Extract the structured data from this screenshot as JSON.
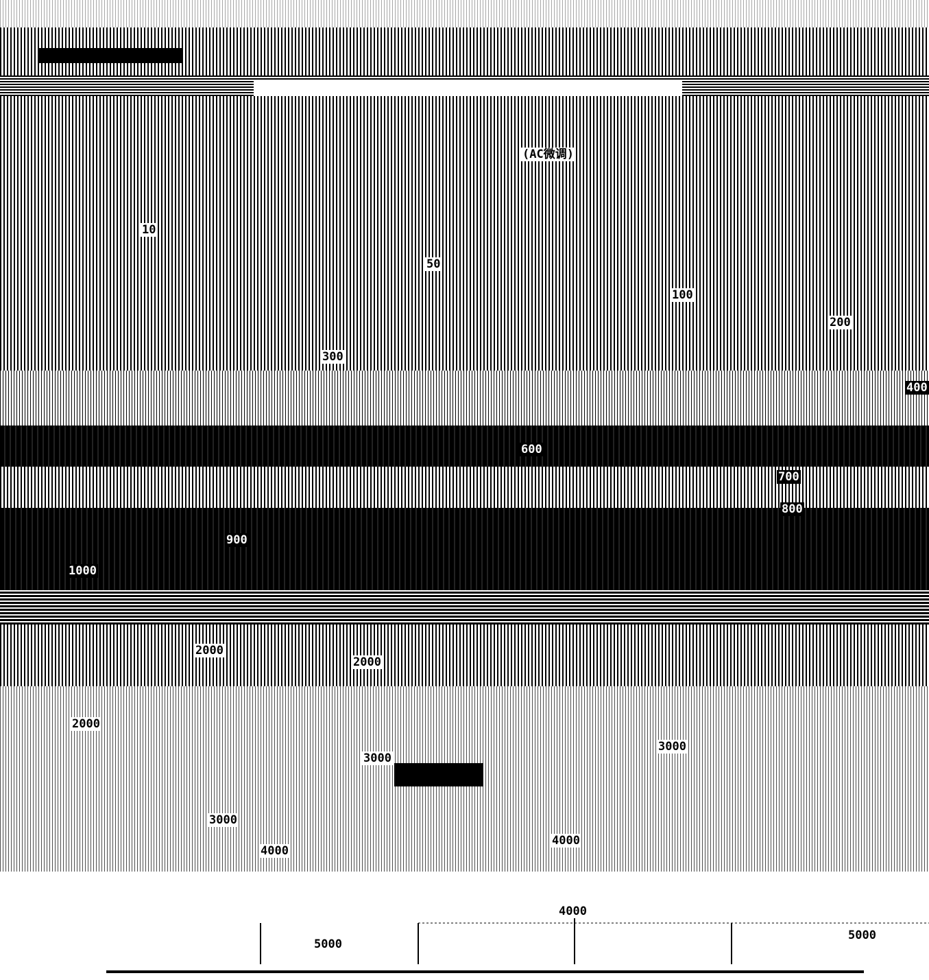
{
  "labels": [
    "(AC微调)",
    "10",
    "50",
    "100",
    "200",
    "300",
    "400",
    "600",
    "700",
    "800",
    "900",
    "1000",
    "2000",
    "2000",
    "2000",
    "3000",
    "3000",
    "3000",
    "4000",
    "4000",
    "4000",
    "5000",
    "5000"
  ]
}
